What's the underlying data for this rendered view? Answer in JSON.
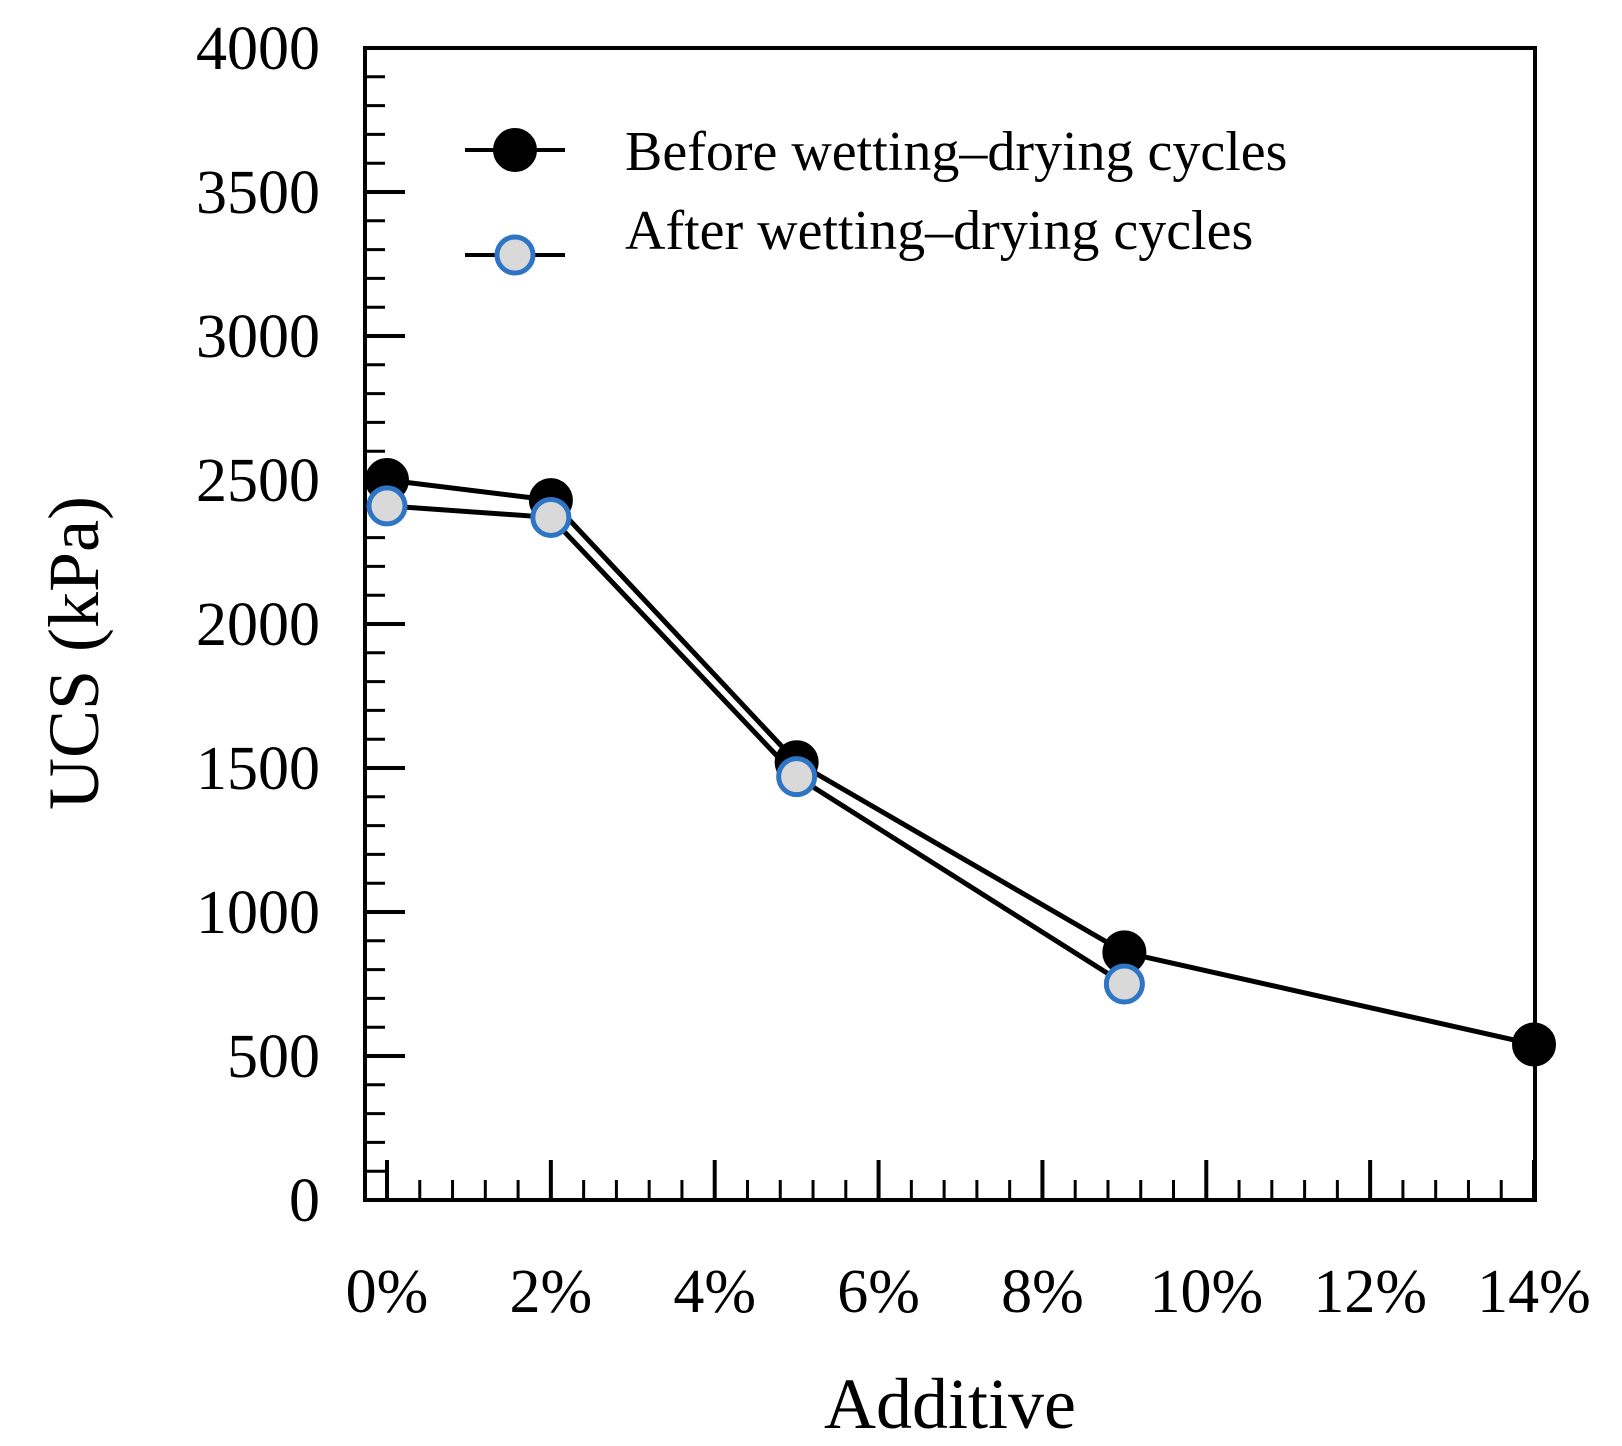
{
  "chart_data": {
    "type": "line",
    "xlabel": "Additive",
    "ylabel": "UCS (kPa)",
    "xlim": [
      0,
      14
    ],
    "ylim": [
      0,
      4000
    ],
    "x_ticks": [
      0,
      2,
      4,
      6,
      8,
      10,
      12,
      14
    ],
    "x_tick_labels": [
      "0%",
      "2%",
      "4%",
      "6%",
      "8%",
      "10%",
      "12%",
      "14%"
    ],
    "y_ticks": [
      0,
      500,
      1000,
      1500,
      2000,
      2500,
      3000,
      3500,
      4000
    ],
    "y_tick_labels": [
      "0",
      "500",
      "1000",
      "1500",
      "2000",
      "2500",
      "3000",
      "3500",
      "4000"
    ],
    "grid": false,
    "legend_position": "top-right",
    "series": [
      {
        "name": "Before wetting–drying cycles",
        "x": [
          0,
          2,
          5,
          9,
          14
        ],
        "values": [
          2500,
          2430,
          1520,
          860,
          540
        ],
        "marker_fill": "#000000",
        "marker_stroke": "#000000"
      },
      {
        "name": "After wetting–drying cycles",
        "x": [
          0,
          2,
          5,
          9
        ],
        "values": [
          2410,
          2370,
          1470,
          750
        ],
        "marker_fill": "#d9d9d9",
        "marker_stroke": "#2e75c5"
      }
    ]
  }
}
